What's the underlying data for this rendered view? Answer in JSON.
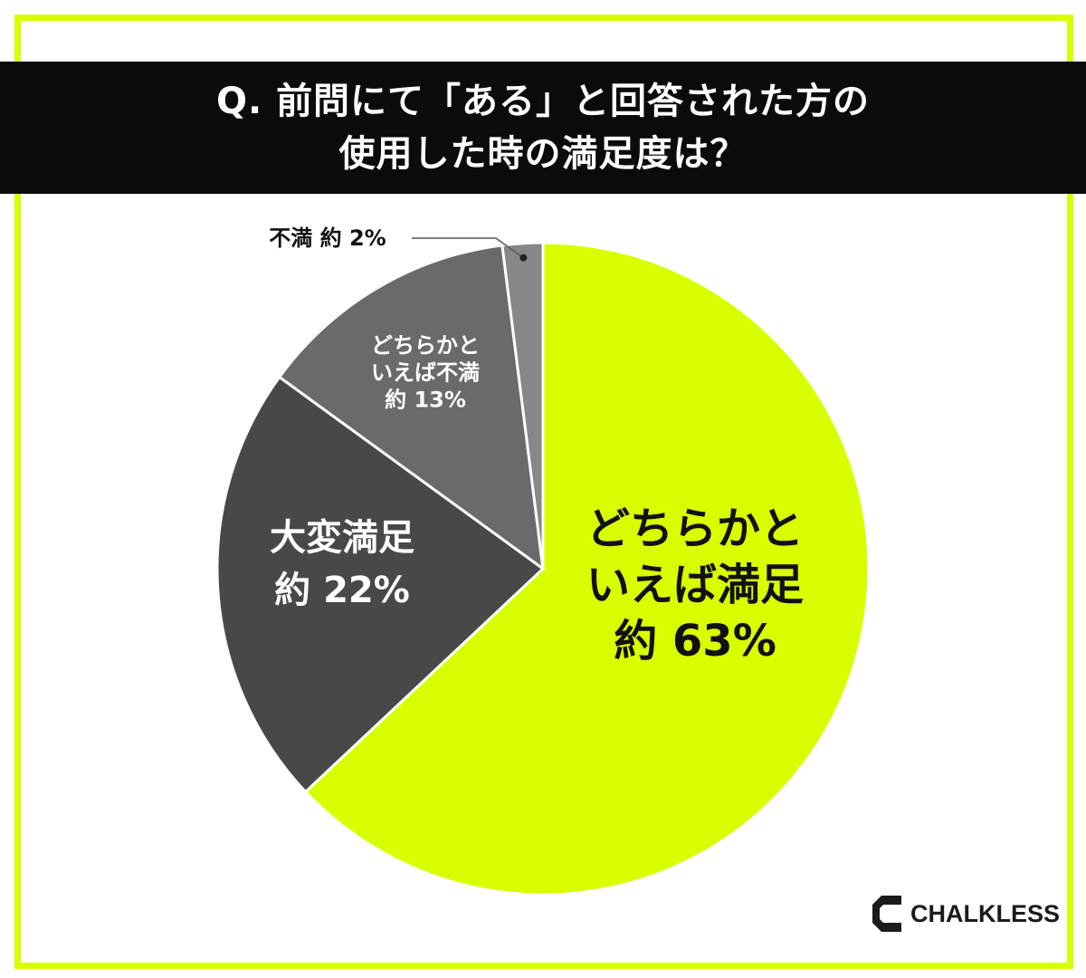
{
  "header": {
    "title_line1": "Q. 前問にて「ある」と回答された方の",
    "title_line2": "使用した時の満足度は？"
  },
  "chart_data": {
    "type": "pie",
    "title": "Q. 前問にて「ある」と回答された方の使用した時の満足度は？",
    "start": "12 o'clock",
    "direction": "clockwise",
    "slices": [
      {
        "label_lines": [
          "どちらかと",
          "いえば満足"
        ],
        "value_text": "約 63%",
        "value": 63,
        "color": "#d7ff00"
      },
      {
        "label_lines": [
          "大変満足"
        ],
        "value_text": "約 22%",
        "value": 22,
        "color": "#484848"
      },
      {
        "label_lines": [
          "どちらかと",
          "いえば不満"
        ],
        "value_text": "約 13%",
        "value": 13,
        "color": "#6a6a6a"
      },
      {
        "label_lines": [
          "不満"
        ],
        "value_text": "約 2%",
        "value": 2,
        "color": "#878787"
      }
    ]
  },
  "brand": {
    "name": "CHALKLESS"
  },
  "colors": {
    "accent": "#d7ff00",
    "title_bg": "#0b0b0b",
    "frame": "#d7ff00"
  }
}
